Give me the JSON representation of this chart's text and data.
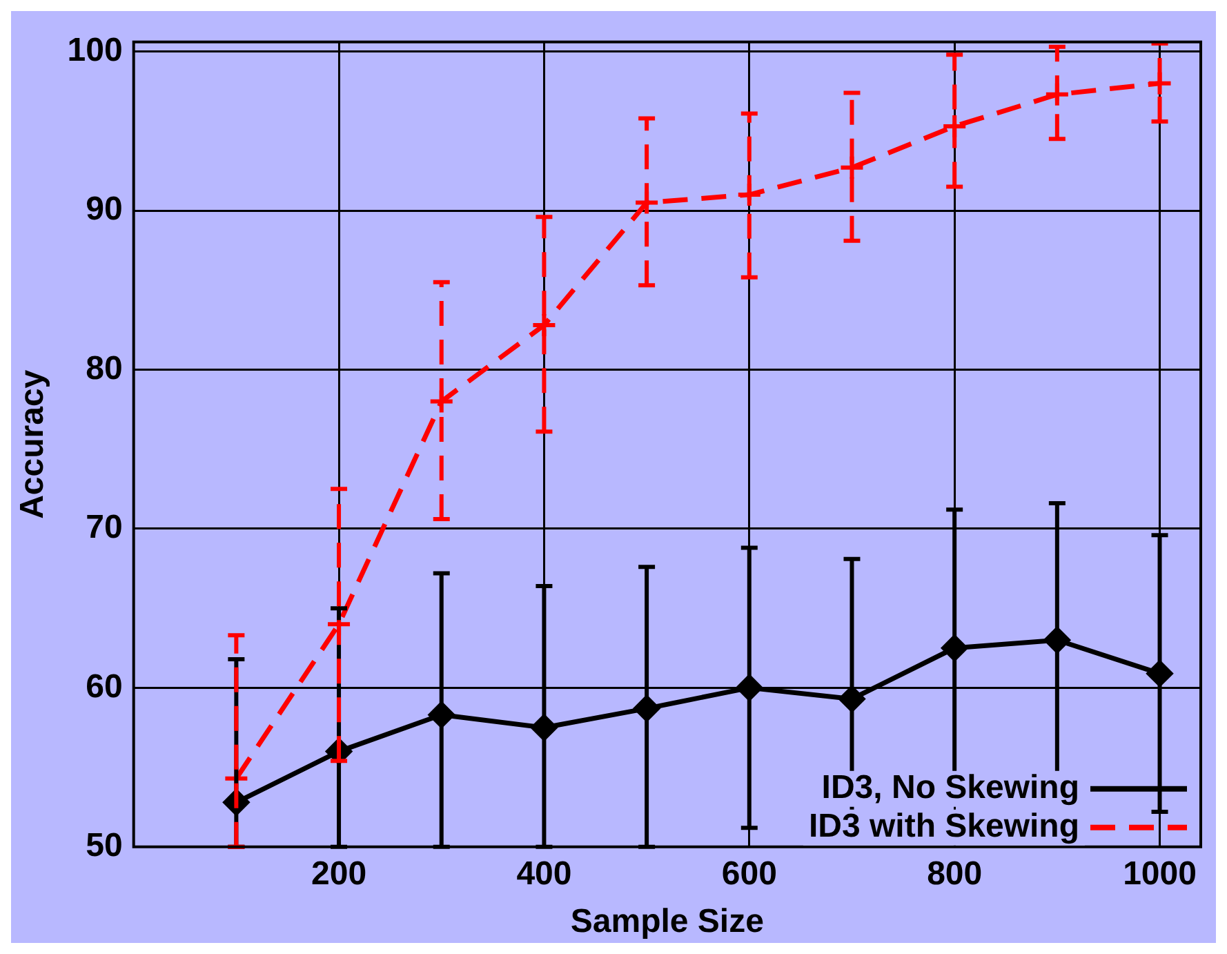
{
  "chart_data": {
    "type": "line",
    "xlabel": "Sample Size",
    "ylabel": "Accuracy",
    "x": [
      100,
      200,
      300,
      400,
      500,
      600,
      700,
      800,
      900,
      1000
    ],
    "series": [
      {
        "name": "ID3, No Skewing",
        "color": "#000000",
        "marker": "diamond",
        "line_style": "solid",
        "values": [
          52.8,
          56,
          58.3,
          57.5,
          58.7,
          60,
          59.3,
          62.5,
          63,
          60.9
        ],
        "errors": [
          [
            50,
            61.8
          ],
          [
            50,
            65
          ],
          [
            50,
            67.2
          ],
          [
            50,
            66.4
          ],
          [
            50,
            67.6
          ],
          [
            51.2,
            68.8
          ],
          [
            50.5,
            68.1
          ],
          [
            53.9,
            71.2
          ],
          [
            54.4,
            71.6
          ],
          [
            52.2,
            69.6
          ]
        ]
      },
      {
        "name": "ID3 with Skewing",
        "color": "#ff0000",
        "marker": "cross",
        "line_style": "dashed",
        "values": [
          54.3,
          64,
          78,
          82.8,
          90.5,
          91,
          92.7,
          95.3,
          97.3,
          98
        ],
        "errors": [
          [
            50,
            63.3
          ],
          [
            55.4,
            72.5
          ],
          [
            70.6,
            85.5
          ],
          [
            76.1,
            89.6
          ],
          [
            85.3,
            95.8
          ],
          [
            85.8,
            96.1
          ],
          [
            88.1,
            97.4
          ],
          [
            91.5,
            99.8
          ],
          [
            94.5,
            100.3
          ],
          [
            95.6,
            100.5
          ]
        ]
      }
    ],
    "xlim": [
      0,
      1040
    ],
    "xticks": [
      200,
      400,
      600,
      800,
      1000
    ],
    "ylim": [
      50,
      100.6
    ],
    "yticks": [
      50,
      60,
      70,
      80,
      90,
      100
    ],
    "grid": true,
    "legend": "bottom right"
  }
}
